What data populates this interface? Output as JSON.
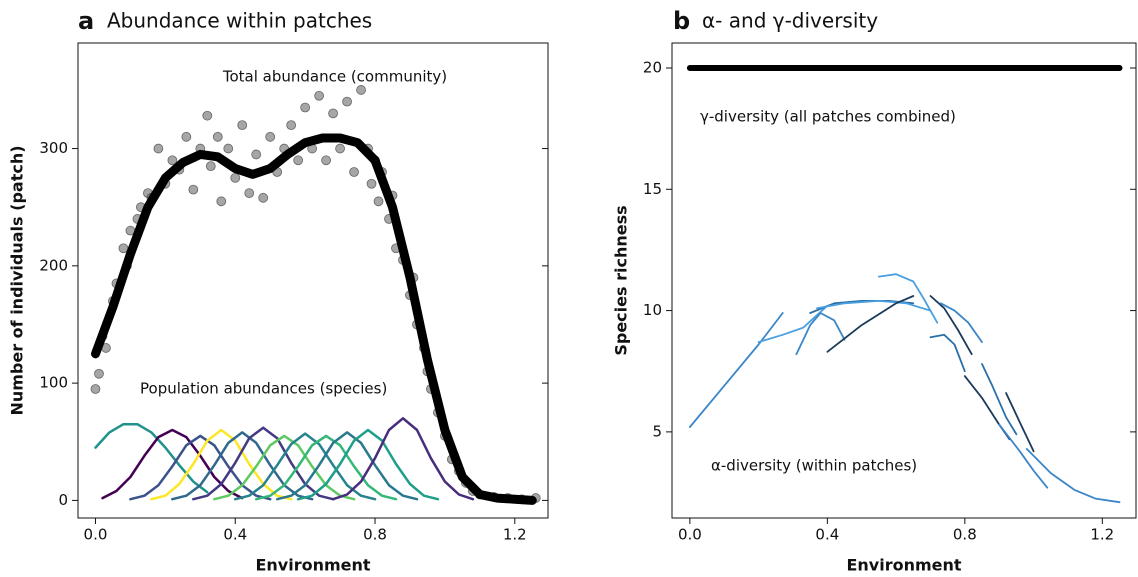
{
  "chart_data": [
    {
      "type": "scatter",
      "panel_label": "a",
      "title": "Abundance within patches",
      "xlabel": "Environment",
      "ylabel": "Number of individuals (patch)",
      "annotations": [
        "Total abundance (community)",
        "Population abundances (species)"
      ],
      "xlim": [
        -0.05,
        1.295
      ],
      "ylim": [
        -15,
        390
      ],
      "xticks": [
        {
          "value": 0,
          "label": "0.0"
        },
        0.4,
        0.8,
        1.2
      ],
      "yticks": [
        0,
        100,
        200,
        300
      ],
      "points": {
        "color": "#4d4d4d",
        "x": [
          0,
          0.01,
          0.02,
          0.03,
          0.05,
          0.06,
          0.08,
          0.09,
          0.1,
          0.12,
          0.13,
          0.15,
          0.16,
          0.18,
          0.2,
          0.22,
          0.24,
          0.26,
          0.28,
          0.3,
          0.32,
          0.33,
          0.35,
          0.36,
          0.38,
          0.4,
          0.42,
          0.44,
          0.46,
          0.48,
          0.5,
          0.52,
          0.54,
          0.56,
          0.58,
          0.6,
          0.62,
          0.64,
          0.66,
          0.68,
          0.7,
          0.72,
          0.74,
          0.76,
          0.78,
          0.79,
          0.8,
          0.81,
          0.82,
          0.84,
          0.85,
          0.86,
          0.88,
          0.9,
          0.91,
          0.92,
          0.94,
          0.95,
          0.96,
          0.98,
          1.0,
          1.02,
          1.04,
          1.06,
          1.08,
          1.1,
          1.14,
          1.18,
          1.22,
          1.26
        ],
        "values": [
          95,
          108,
          140,
          130,
          170,
          185,
          215,
          200,
          230,
          240,
          250,
          262,
          258,
          300,
          270,
          290,
          282,
          310,
          265,
          300,
          328,
          285,
          310,
          255,
          300,
          275,
          320,
          262,
          295,
          258,
          310,
          280,
          300,
          320,
          290,
          335,
          300,
          345,
          290,
          330,
          300,
          340,
          280,
          350,
          300,
          270,
          290,
          255,
          280,
          240,
          260,
          215,
          205,
          175,
          190,
          150,
          130,
          110,
          95,
          75,
          55,
          35,
          25,
          15,
          8,
          5,
          3,
          2,
          1,
          2
        ]
      },
      "series": [
        {
          "color": "#000000",
          "line_width": 9,
          "x": [
            0,
            0.05,
            0.1,
            0.15,
            0.2,
            0.25,
            0.3,
            0.35,
            0.4,
            0.45,
            0.5,
            0.55,
            0.6,
            0.65,
            0.7,
            0.75,
            0.8,
            0.85,
            0.9,
            0.95,
            1.0,
            1.05,
            1.1,
            1.15,
            1.2,
            1.25
          ],
          "values": [
            125,
            165,
            210,
            250,
            275,
            288,
            295,
            293,
            283,
            278,
            283,
            295,
            305,
            309,
            309,
            305,
            290,
            250,
            190,
            120,
            60,
            20,
            5,
            2,
            1,
            0
          ]
        },
        {
          "color": "#21918c",
          "line_width": 2.5,
          "x": [
            0,
            0.04,
            0.08,
            0.12,
            0.16,
            0.2,
            0.24,
            0.28,
            0.32
          ],
          "values": [
            45,
            58,
            65,
            65,
            58,
            45,
            30,
            16,
            7
          ]
        },
        {
          "color": "#440154",
          "line_width": 2.5,
          "x": [
            0.02,
            0.06,
            0.1,
            0.14,
            0.18,
            0.22,
            0.26,
            0.3,
            0.34,
            0.38,
            0.42
          ],
          "values": [
            2,
            8,
            20,
            38,
            54,
            60,
            54,
            38,
            20,
            8,
            2
          ]
        },
        {
          "color": "#3b528b",
          "line_width": 2.5,
          "x": [
            0.1,
            0.14,
            0.18,
            0.22,
            0.26,
            0.3,
            0.34,
            0.38,
            0.42,
            0.46,
            0.5
          ],
          "values": [
            1,
            4,
            13,
            29,
            47,
            55,
            47,
            29,
            13,
            4,
            1
          ]
        },
        {
          "color": "#fde725",
          "line_width": 2.5,
          "x": [
            0.16,
            0.2,
            0.24,
            0.28,
            0.32,
            0.36,
            0.4,
            0.44,
            0.48,
            0.52,
            0.56
          ],
          "values": [
            1,
            4,
            14,
            31,
            51,
            60,
            51,
            31,
            14,
            4,
            1
          ]
        },
        {
          "color": "#31688e",
          "line_width": 2.5,
          "x": [
            0.22,
            0.26,
            0.3,
            0.34,
            0.38,
            0.42,
            0.46,
            0.5,
            0.54,
            0.58,
            0.62
          ],
          "values": [
            1,
            4,
            13,
            30,
            49,
            58,
            49,
            30,
            13,
            4,
            1
          ]
        },
        {
          "color": "#443983",
          "line_width": 2.5,
          "x": [
            0.28,
            0.32,
            0.36,
            0.4,
            0.44,
            0.48,
            0.52,
            0.56,
            0.6,
            0.64,
            0.68
          ],
          "values": [
            1,
            4,
            14,
            32,
            53,
            62,
            53,
            32,
            14,
            4,
            1
          ]
        },
        {
          "color": "#5ec962",
          "line_width": 2.5,
          "x": [
            0.34,
            0.38,
            0.42,
            0.46,
            0.5,
            0.54,
            0.58,
            0.62,
            0.66,
            0.7,
            0.74
          ],
          "values": [
            1,
            4,
            13,
            29,
            47,
            55,
            47,
            29,
            13,
            4,
            1
          ]
        },
        {
          "color": "#26828e",
          "line_width": 2.5,
          "x": [
            0.4,
            0.44,
            0.48,
            0.52,
            0.56,
            0.6,
            0.64,
            0.68,
            0.72,
            0.76,
            0.8
          ],
          "values": [
            1,
            4,
            13,
            30,
            48,
            57,
            48,
            30,
            13,
            4,
            1
          ]
        },
        {
          "color": "#35b779",
          "line_width": 2.5,
          "x": [
            0.46,
            0.5,
            0.54,
            0.58,
            0.62,
            0.66,
            0.7,
            0.74,
            0.78,
            0.82,
            0.86
          ],
          "values": [
            1,
            4,
            13,
            29,
            47,
            55,
            47,
            29,
            13,
            4,
            1
          ]
        },
        {
          "color": "#2a788e",
          "line_width": 2.5,
          "x": [
            0.52,
            0.56,
            0.6,
            0.64,
            0.68,
            0.72,
            0.76,
            0.8,
            0.84,
            0.88,
            0.92
          ],
          "values": [
            1,
            4,
            13,
            30,
            49,
            58,
            49,
            30,
            13,
            4,
            1
          ]
        },
        {
          "color": "#1f9e89",
          "line_width": 2.5,
          "x": [
            0.58,
            0.62,
            0.66,
            0.7,
            0.74,
            0.78,
            0.82,
            0.86,
            0.9,
            0.94,
            0.98
          ],
          "values": [
            1,
            4,
            14,
            31,
            51,
            60,
            51,
            31,
            14,
            4,
            1
          ]
        },
        {
          "color": "#472d7b",
          "line_width": 2.5,
          "x": [
            0.68,
            0.72,
            0.76,
            0.8,
            0.84,
            0.88,
            0.92,
            0.96,
            1.0,
            1.04,
            1.08
          ],
          "values": [
            1,
            5,
            16,
            36,
            60,
            70,
            60,
            36,
            16,
            5,
            1
          ]
        }
      ]
    },
    {
      "type": "line",
      "panel_label": "b",
      "title": "α- and γ-diversity",
      "xlabel": "Environment",
      "ylabel": "Species richness",
      "annotations": [
        "γ-diversity (all patches combined)",
        "α-diversity (within patches)"
      ],
      "xlim": [
        -0.052,
        1.298
      ],
      "ylim": [
        1.45,
        21.03
      ],
      "xticks": [
        {
          "value": 0,
          "label": "0.0"
        },
        0.4,
        0.8,
        1.2
      ],
      "yticks": [
        5,
        10,
        15,
        20
      ],
      "series": [
        {
          "color": "#000000",
          "line_width": 6,
          "x": [
            0,
            1.25
          ],
          "values": [
            20,
            20
          ]
        },
        {
          "color": "#3a86c8",
          "line_width": 1.8,
          "x": [
            0,
            0.1,
            0.2,
            0.27
          ],
          "values": [
            5.2,
            6.9,
            8.6,
            9.9
          ]
        },
        {
          "color": "#4aa0e0",
          "line_width": 1.8,
          "x": [
            0.2,
            0.27,
            0.33,
            0.4
          ],
          "values": [
            8.7,
            9.0,
            9.3,
            10.2
          ]
        },
        {
          "color": "#3a86c8",
          "line_width": 1.8,
          "x": [
            0.31,
            0.35,
            0.38,
            0.42,
            0.45
          ],
          "values": [
            8.2,
            9.4,
            9.9,
            9.6,
            8.8
          ]
        },
        {
          "color": "#2a6fa8",
          "line_width": 1.8,
          "x": [
            0.35,
            0.42,
            0.5,
            0.58,
            0.65
          ],
          "values": [
            9.9,
            10.3,
            10.4,
            10.4,
            10.3
          ]
        },
        {
          "color": "#4aa0e0",
          "line_width": 1.8,
          "x": [
            0.37,
            0.45,
            0.55,
            0.63,
            0.7
          ],
          "values": [
            10.1,
            10.3,
            10.4,
            10.3,
            10.0
          ]
        },
        {
          "color": "#1b3a5a",
          "line_width": 1.8,
          "x": [
            0.4,
            0.5,
            0.6,
            0.65
          ],
          "values": [
            8.3,
            9.4,
            10.3,
            10.6
          ]
        },
        {
          "color": "#4aa0e0",
          "line_width": 1.8,
          "x": [
            0.55,
            0.6,
            0.65,
            0.68,
            0.72
          ],
          "values": [
            11.4,
            11.5,
            11.2,
            10.5,
            9.5
          ]
        },
        {
          "color": "#1b3a5a",
          "line_width": 1.8,
          "x": [
            0.7,
            0.74,
            0.78,
            0.82
          ],
          "values": [
            10.6,
            10.1,
            9.2,
            8.2
          ]
        },
        {
          "color": "#2a6fa8",
          "line_width": 1.8,
          "x": [
            0.7,
            0.74,
            0.77,
            0.8
          ],
          "values": [
            8.9,
            9.0,
            8.6,
            7.5
          ]
        },
        {
          "color": "#3a86c8",
          "line_width": 1.8,
          "x": [
            0.73,
            0.77,
            0.81,
            0.85
          ],
          "values": [
            10.3,
            10.0,
            9.5,
            8.7
          ]
        },
        {
          "color": "#1b3a5a",
          "line_width": 1.8,
          "x": [
            0.8,
            0.85,
            0.9,
            0.93
          ],
          "values": [
            7.3,
            6.4,
            5.3,
            4.7
          ]
        },
        {
          "color": "#2a6fa8",
          "line_width": 1.8,
          "x": [
            0.85,
            0.88,
            0.92,
            0.95
          ],
          "values": [
            7.8,
            6.9,
            5.6,
            4.9
          ]
        },
        {
          "color": "#1b3a5a",
          "line_width": 1.8,
          "x": [
            0.92,
            0.96,
            1.0
          ],
          "values": [
            6.6,
            5.4,
            4.2
          ]
        },
        {
          "color": "#3a86c8",
          "line_width": 1.8,
          "x": [
            0.9,
            0.96,
            1.0,
            1.04
          ],
          "values": [
            5.3,
            4.2,
            3.4,
            2.7
          ]
        },
        {
          "color": "#3a86c8",
          "line_width": 1.8,
          "x": [
            0.98,
            1.05,
            1.12,
            1.18,
            1.25
          ],
          "values": [
            4.3,
            3.3,
            2.6,
            2.25,
            2.1
          ]
        }
      ]
    }
  ]
}
